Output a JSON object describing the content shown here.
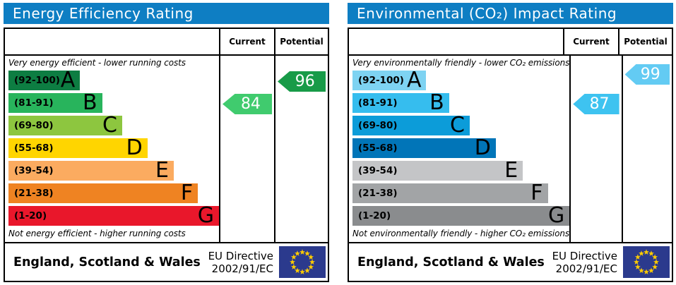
{
  "eu_flag": {
    "background": "#2b3a8d",
    "star_color": "#ffcc00"
  },
  "charts": [
    {
      "title": "Energy Efficiency Rating",
      "header_color": "#0e7ec3",
      "columns": {
        "current": "Current",
        "potential": "Potential"
      },
      "top_note": "Very energy efficient - lower running costs",
      "bottom_note": "Not energy efficient - higher running costs",
      "bands": [
        {
          "letter": "A",
          "range": "(92-100)",
          "color": "#0d7d42",
          "width": "34%"
        },
        {
          "letter": "B",
          "range": "(81-91)",
          "color": "#28b45c",
          "width": "44.5%"
        },
        {
          "letter": "C",
          "range": "(69-80)",
          "color": "#8dc63f",
          "width": "54%"
        },
        {
          "letter": "D",
          "range": "(55-68)",
          "color": "#ffd500",
          "width": "66%"
        },
        {
          "letter": "E",
          "range": "(39-54)",
          "color": "#fbab60",
          "width": "78.5%"
        },
        {
          "letter": "F",
          "range": "(21-38)",
          "color": "#ef8322",
          "width": "90%"
        },
        {
          "letter": "G",
          "range": "(1-20)",
          "color": "#e9172b",
          "width": "100%"
        }
      ],
      "current": {
        "value": "84",
        "band": "B",
        "color": "#40cb6e"
      },
      "potential": {
        "value": "96",
        "band": "A",
        "color": "#189b48"
      },
      "footer": {
        "region": "England, Scotland & Wales",
        "directive_line1": "EU Directive",
        "directive_line2": "2002/91/EC"
      }
    },
    {
      "title": "Environmental (CO₂) Impact Rating",
      "header_color": "#0e7ec3",
      "columns": {
        "current": "Current",
        "potential": "Potential"
      },
      "top_note": "Very environmentally friendly - lower CO₂ emissions",
      "bottom_note": "Not environmentally friendly - higher CO₂ emissions",
      "bands": [
        {
          "letter": "A",
          "range": "(92-100)",
          "color": "#7ed3f2",
          "width": "34%"
        },
        {
          "letter": "B",
          "range": "(81-91)",
          "color": "#36bdee",
          "width": "44.5%"
        },
        {
          "letter": "C",
          "range": "(69-80)",
          "color": "#0c9cd9",
          "width": "54%"
        },
        {
          "letter": "D",
          "range": "(55-68)",
          "color": "#0175b8",
          "width": "66%"
        },
        {
          "letter": "E",
          "range": "(39-54)",
          "color": "#c4c5c7",
          "width": "78.5%"
        },
        {
          "letter": "F",
          "range": "(21-38)",
          "color": "#a2a4a6",
          "width": "90%"
        },
        {
          "letter": "G",
          "range": "(1-20)",
          "color": "#8a8c8e",
          "width": "100%"
        }
      ],
      "current": {
        "value": "87",
        "band": "B",
        "color": "#3ec3f0"
      },
      "potential": {
        "value": "99",
        "band": "A",
        "color": "#63cbf3"
      },
      "footer": {
        "region": "England, Scotland & Wales",
        "directive_line1": "EU Directive",
        "directive_line2": "2002/91/EC"
      }
    }
  ],
  "chart_data": [
    {
      "type": "bar",
      "title": "Energy Efficiency Rating",
      "categories": [
        "A (92-100)",
        "B (81-91)",
        "C (69-80)",
        "D (55-68)",
        "E (39-54)",
        "F (21-38)",
        "G (1-20)"
      ],
      "values": [
        34,
        44,
        54,
        66,
        79,
        90,
        100
      ],
      "values_note": "relative band bar lengths in % of scale column width",
      "current": {
        "value": 84,
        "band": "B"
      },
      "potential": {
        "value": 96,
        "band": "A"
      },
      "top_annotation": "Very energy efficient - lower running costs",
      "bottom_annotation": "Not energy efficient - higher running costs",
      "footer": "England, Scotland & Wales · EU Directive 2002/91/EC"
    },
    {
      "type": "bar",
      "title": "Environmental (CO₂) Impact Rating",
      "categories": [
        "A (92-100)",
        "B (81-91)",
        "C (69-80)",
        "D (55-68)",
        "E (39-54)",
        "F (21-38)",
        "G (1-20)"
      ],
      "values": [
        34,
        44,
        54,
        66,
        79,
        90,
        100
      ],
      "values_note": "relative band bar lengths in % of scale column width",
      "current": {
        "value": 87,
        "band": "B"
      },
      "potential": {
        "value": 99,
        "band": "A"
      },
      "top_annotation": "Very environmentally friendly - lower CO₂ emissions",
      "bottom_annotation": "Not environmentally friendly - higher CO₂ emissions",
      "footer": "England, Scotland & Wales · EU Directive 2002/91/EC"
    }
  ]
}
